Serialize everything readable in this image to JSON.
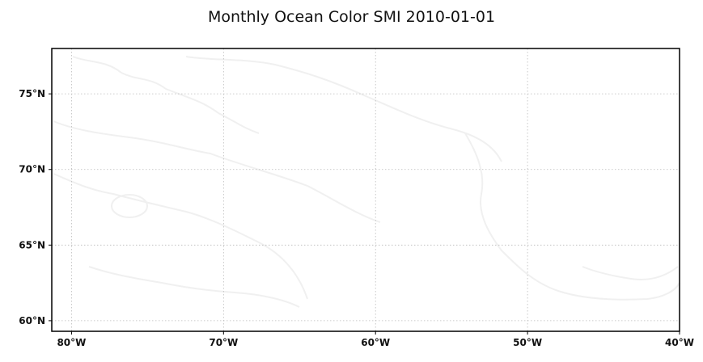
{
  "map": {
    "title": "Monthly Ocean Color SMI 2010-01-01",
    "extent": {
      "lon_min": -81.3,
      "lon_max": -40.0,
      "lat_min": 59.3,
      "lat_max": 78.0
    },
    "gridlines": true,
    "lon_ticks": [
      {
        "value": -80,
        "label": "80°W"
      },
      {
        "value": -70,
        "label": "70°W"
      },
      {
        "value": -60,
        "label": "60°W"
      },
      {
        "value": -50,
        "label": "50°W"
      },
      {
        "value": -40,
        "label": "40°W"
      }
    ],
    "lat_ticks": [
      {
        "value": 75,
        "label": "75°N"
      },
      {
        "value": 70,
        "label": "70°N"
      },
      {
        "value": 65,
        "label": "65°N"
      },
      {
        "value": 60,
        "label": "60°N"
      }
    ],
    "colors": {
      "frame": "#000000",
      "grid": "#bbbbbb",
      "coastline": "#f0f0f0",
      "background": "#ffffff"
    }
  }
}
